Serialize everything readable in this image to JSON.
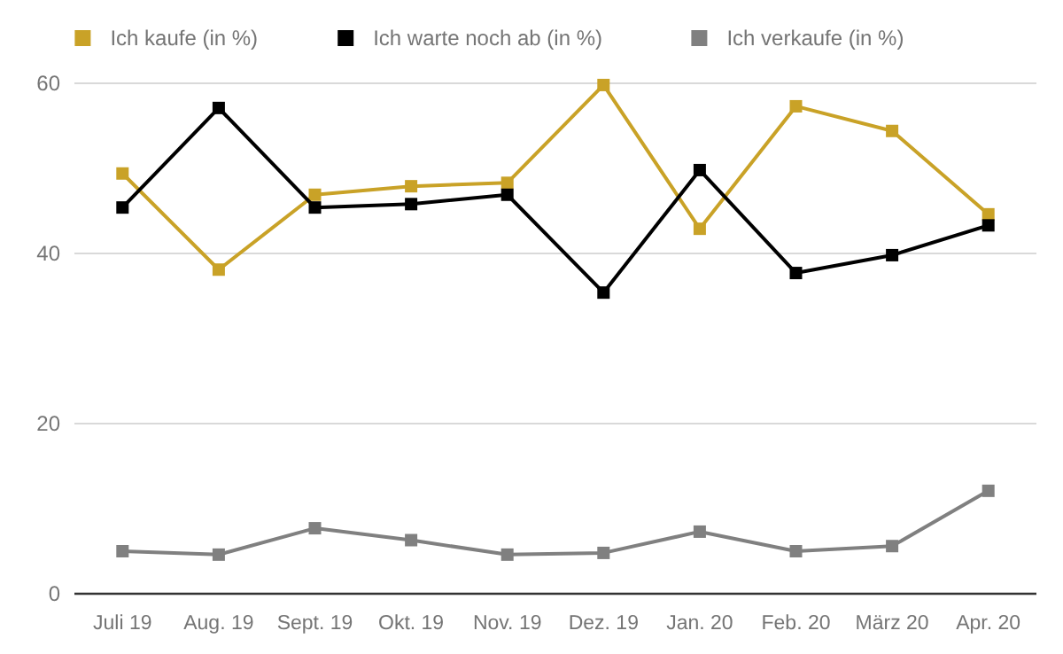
{
  "chart_data": {
    "type": "line",
    "categories": [
      "Juli 19",
      "Aug. 19",
      "Sept. 19",
      "Okt. 19",
      "Nov. 19",
      "Dez. 19",
      "Jan. 20",
      "Feb. 20",
      "März 20",
      "Apr. 20"
    ],
    "series": [
      {
        "name": "Ich kaufe (in %)",
        "color": "#c9a227",
        "values": [
          49.4,
          38.1,
          46.9,
          47.9,
          48.3,
          59.8,
          42.9,
          57.3,
          54.4,
          44.6
        ]
      },
      {
        "name": "Ich warte noch ab (in %)",
        "color": "#000000",
        "values": [
          45.4,
          57.1,
          45.4,
          45.8,
          46.9,
          35.4,
          49.8,
          37.7,
          39.8,
          43.3
        ]
      },
      {
        "name": "Ich verkaufe (in %)",
        "color": "#808080",
        "values": [
          5.0,
          4.6,
          7.7,
          6.3,
          4.6,
          4.8,
          7.3,
          5.0,
          5.6,
          12.1
        ]
      }
    ],
    "ylim": [
      0,
      60
    ],
    "yticks": [
      0,
      20,
      40,
      60
    ],
    "grid": "y",
    "legend": "top",
    "marker": "square",
    "line_style": "solid"
  }
}
